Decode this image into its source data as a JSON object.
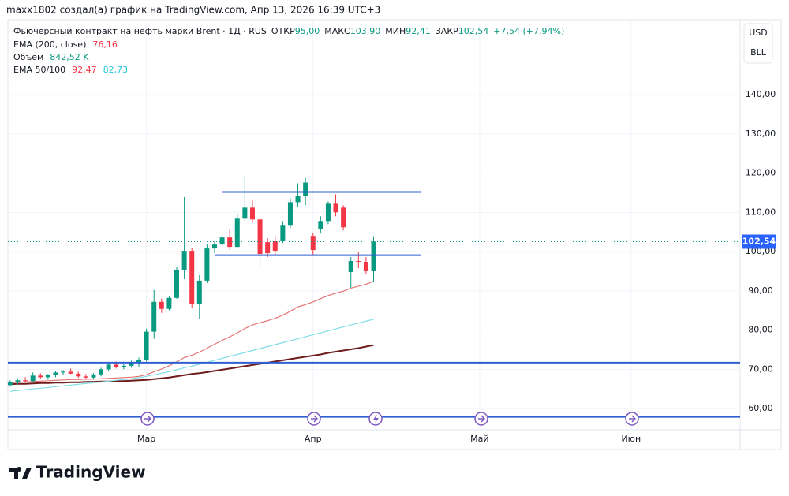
{
  "header": {
    "caption": "maxx1802 создал(а) график на TradingView.com, Апр 13, 2026 16:39 UTC+3"
  },
  "legend": {
    "symbol": "Фьючерсный контракт на нефть марки Brent · 1Д · RUS",
    "open_name": "ОТКР",
    "open": "95,00",
    "high_name": "МАКС",
    "high": "103,90",
    "low_name": "МИН",
    "low": "92,41",
    "close_name": "ЗАКР",
    "close": "102,54",
    "change": "+7,54 (+7,94%)",
    "ema200_name": "EMA (200, close)",
    "ema200": "76,16",
    "volume_name": "Объём",
    "volume": "842,52 K",
    "ema50100_name": "EMA 50/100",
    "ema50": "92,47",
    "ema100": "82,73"
  },
  "buttons": {
    "currency": "USD",
    "unit": "BLL"
  },
  "footer": {
    "brand": "TradingView"
  },
  "chart_data": {
    "type": "candlestick",
    "x": [
      0,
      1,
      2,
      3,
      4,
      5,
      6,
      7,
      8,
      9,
      10,
      11,
      12,
      13,
      14,
      15,
      16,
      17,
      18,
      19,
      20,
      21,
      22,
      23,
      24,
      25,
      26,
      27,
      28,
      29,
      30,
      31,
      32,
      33,
      34,
      35,
      36,
      37,
      38,
      39,
      40,
      41,
      42,
      43,
      44,
      45,
      46,
      47,
      48
    ],
    "open": [
      66.0,
      66.8,
      67.2,
      67.0,
      68.4,
      68.0,
      68.6,
      69.2,
      69.4,
      68.9,
      68.2,
      67.9,
      68.7,
      70.0,
      71.2,
      70.6,
      70.9,
      71.6,
      72.4,
      79.6,
      87.2,
      85.4,
      88.2,
      95.4,
      100.2,
      86.6,
      92.6,
      100.8,
      101.8,
      103.6,
      101.2,
      108.4,
      111.2,
      108.2,
      102.4,
      102.8,
      102.8,
      106.8,
      112.6,
      114.2,
      104.0,
      105.8,
      107.8,
      112.2,
      111.2,
      94.8,
      97.6,
      97.4,
      95
    ],
    "high": [
      67.2,
      67.6,
      68.0,
      69.2,
      69.0,
      68.8,
      69.6,
      69.8,
      70.2,
      69.4,
      68.8,
      69.0,
      70.4,
      71.6,
      72.0,
      71.4,
      72.2,
      73.0,
      80.4,
      90.2,
      88.0,
      88.6,
      96.0,
      113.9,
      101.0,
      94.0,
      101.8,
      102.8,
      104.4,
      105.8,
      109.6,
      119.0,
      113.2,
      109.0,
      103.4,
      104.0,
      107.8,
      113.6,
      117.4,
      118.8,
      104.8,
      109.0,
      112.8,
      114.6,
      111.8,
      98.6,
      99.8,
      98.6,
      103.9
    ],
    "low": [
      65.6,
      66.2,
      66.6,
      66.8,
      67.6,
      67.4,
      68.0,
      68.6,
      68.8,
      67.8,
      67.4,
      67.5,
      68.2,
      69.6,
      70.2,
      70.0,
      70.4,
      70.6,
      72.0,
      77.8,
      84.4,
      85.0,
      88.0,
      93.0,
      85.6,
      82.8,
      92.0,
      99.6,
      101.0,
      100.4,
      100.8,
      107.8,
      107.4,
      96.0,
      98.6,
      99.0,
      102.2,
      106.0,
      111.4,
      111.8,
      99.2,
      104.6,
      107.0,
      109.0,
      105.4,
      90.8,
      95.8,
      94.4,
      92.41
    ],
    "close": [
      66.8,
      67.2,
      67.0,
      68.4,
      68.0,
      68.6,
      69.2,
      69.4,
      68.9,
      68.2,
      67.9,
      68.7,
      70.0,
      71.2,
      70.6,
      70.9,
      71.6,
      72.4,
      79.6,
      87.2,
      85.4,
      88.2,
      95.4,
      100.2,
      86.6,
      92.6,
      100.8,
      101.8,
      103.6,
      101.2,
      108.4,
      111.2,
      108.2,
      99.4,
      99.6,
      100.2,
      106.8,
      112.6,
      114.2,
      117.6,
      100.4,
      107.8,
      112.2,
      110.0,
      106.2,
      97.6,
      97.4,
      95.0,
      102.54
    ],
    "up_color": "#089981",
    "down_color": "#f23645",
    "series": [
      {
        "name": "EMA 200",
        "color": "#6d1b1b",
        "values": [
          66.2,
          66.3,
          66.3,
          66.4,
          66.5,
          66.5,
          66.6,
          66.6,
          66.7,
          66.7,
          66.8,
          66.8,
          66.9,
          66.9,
          67.0,
          67.0,
          67.1,
          67.2,
          67.3,
          67.5,
          67.7,
          67.9,
          68.2,
          68.5,
          68.8,
          69.0,
          69.3,
          69.6,
          69.9,
          70.2,
          70.5,
          70.8,
          71.1,
          71.4,
          71.7,
          72.0,
          72.3,
          72.6,
          72.9,
          73.2,
          73.5,
          73.8,
          74.2,
          74.5,
          74.8,
          75.1,
          75.4,
          75.8,
          76.16
        ]
      },
      {
        "name": "EMA 100",
        "color": "#7fdde6",
        "values": [
          64.4,
          64.6,
          64.8,
          65.0,
          65.2,
          65.4,
          65.6,
          65.8,
          66.0,
          66.2,
          66.4,
          66.6,
          66.8,
          67.0,
          67.2,
          67.4,
          67.6,
          67.9,
          68.2,
          68.6,
          69.0,
          69.4,
          69.9,
          70.4,
          70.8,
          71.3,
          71.8,
          72.3,
          72.8,
          73.3,
          73.8,
          74.3,
          74.8,
          75.3,
          75.8,
          76.3,
          76.8,
          77.3,
          77.8,
          78.3,
          78.8,
          79.3,
          79.8,
          80.3,
          80.8,
          81.3,
          81.8,
          82.3,
          82.73
        ]
      },
      {
        "name": "EMA 50",
        "color": "#e57373",
        "values": [
          66.6,
          66.7,
          66.8,
          66.9,
          67.0,
          67.1,
          67.2,
          67.3,
          67.4,
          67.4,
          67.5,
          67.5,
          67.6,
          67.7,
          67.8,
          67.9,
          68.0,
          68.2,
          68.6,
          69.4,
          70.1,
          70.9,
          71.9,
          73.0,
          73.6,
          74.4,
          75.4,
          76.4,
          77.4,
          78.3,
          79.3,
          80.4,
          81.3,
          81.9,
          82.4,
          83.0,
          83.8,
          84.8,
          85.9,
          86.5,
          87.2,
          88.0,
          88.8,
          89.4,
          89.9,
          90.7,
          91.2,
          91.7,
          92.47
        ]
      }
    ],
    "levels": [
      {
        "value": 115.2,
        "x": [
          28,
          54.2
        ],
        "color": "#2f5fd0"
      },
      {
        "value": 99.1,
        "x": [
          27,
          54.2
        ],
        "color": "#2f5fd0"
      },
      {
        "value": 71.7,
        "x": [
          -0.3,
          96.4
        ],
        "color": "#2f5fd0"
      },
      {
        "value": 57.9,
        "x": [
          -0.3,
          96.4
        ],
        "color": "#2f5fd0"
      }
    ],
    "last_price": {
      "value": 102.54,
      "label": "102,54",
      "color": "#2962ff"
    },
    "xlim": [
      -0.3,
      96.4
    ],
    "xticks": [
      {
        "value": 18,
        "label": "Мар"
      },
      {
        "value": 40,
        "label": "Апр"
      },
      {
        "value": 62,
        "label": "Май"
      },
      {
        "value": 82,
        "label": "Июн"
      }
    ],
    "ylim": [
      54.6,
      159.1
    ],
    "yticks": [
      {
        "value": 60,
        "label": "60,00"
      },
      {
        "value": 70,
        "label": "70,00"
      },
      {
        "value": 80,
        "label": "80,00"
      },
      {
        "value": 90,
        "label": "90,00"
      },
      {
        "value": 100,
        "label": "100,00"
      },
      {
        "value": 110,
        "label": "110,00"
      },
      {
        "value": 120,
        "label": "120,00"
      },
      {
        "value": 130,
        "label": "130,00"
      },
      {
        "value": 140,
        "label": "140,00"
      }
    ],
    "grid": true
  }
}
